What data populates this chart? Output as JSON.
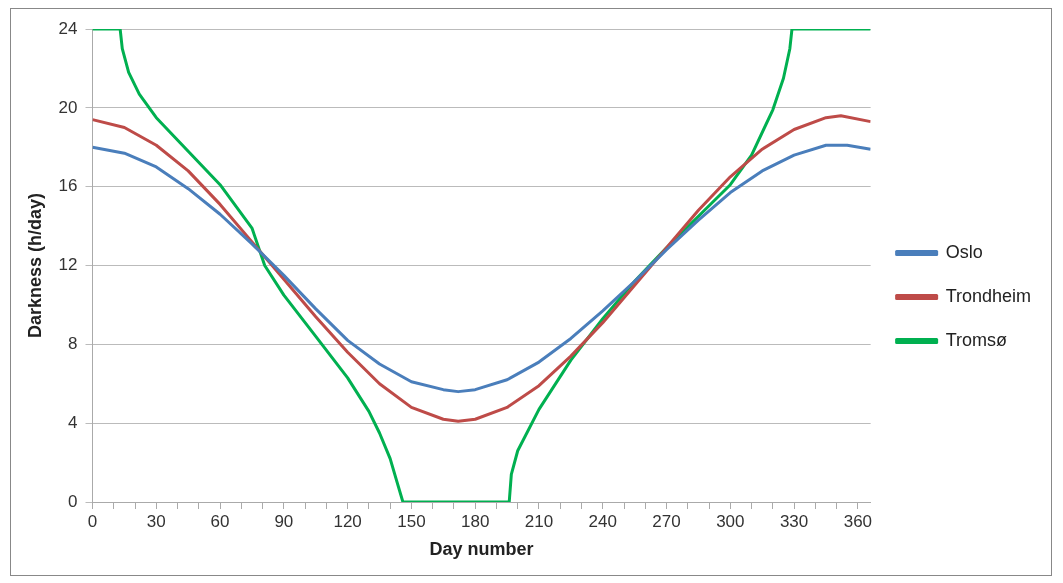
{
  "chart_data": {
    "type": "line",
    "xlabel": "Day number",
    "ylabel": "Darkness (h/day)",
    "xlim": [
      0,
      366
    ],
    "ylim": [
      0,
      24
    ],
    "xticks": [
      0,
      {
        "value": 10,
        "label": null
      },
      {
        "value": 20,
        "label": null
      },
      30,
      {
        "value": 40,
        "label": null
      },
      {
        "value": 50,
        "label": null
      },
      60,
      {
        "value": 70,
        "label": null
      },
      {
        "value": 80,
        "label": null
      },
      90,
      {
        "value": 100,
        "label": null
      },
      {
        "value": 110,
        "label": null
      },
      120,
      {
        "value": 130,
        "label": null
      },
      {
        "value": 140,
        "label": null
      },
      150,
      {
        "value": 160,
        "label": null
      },
      {
        "value": 170,
        "label": null
      },
      180,
      {
        "value": 190,
        "label": null
      },
      {
        "value": 200,
        "label": null
      },
      210,
      {
        "value": 220,
        "label": null
      },
      {
        "value": 230,
        "label": null
      },
      240,
      {
        "value": 250,
        "label": null
      },
      {
        "value": 260,
        "label": null
      },
      270,
      {
        "value": 280,
        "label": null
      },
      {
        "value": 290,
        "label": null
      },
      300,
      {
        "value": 310,
        "label": null
      },
      {
        "value": 320,
        "label": null
      },
      330,
      {
        "value": 340,
        "label": null
      },
      {
        "value": 350,
        "label": null
      },
      360
    ],
    "yticks": [
      0,
      4,
      8,
      12,
      16,
      20,
      24
    ],
    "grid": "y",
    "legend": "right",
    "marker": "none",
    "line_style": "solid",
    "series": [
      {
        "name": "Oslo",
        "color": "#4a7ebb",
        "x": [
          0,
          15,
          30,
          45,
          60,
          75,
          90,
          105,
          120,
          135,
          150,
          165,
          172,
          180,
          195,
          210,
          225,
          240,
          255,
          270,
          285,
          300,
          315,
          330,
          345,
          355,
          366
        ],
        "values": [
          18.0,
          17.7,
          17.0,
          15.9,
          14.6,
          13.1,
          11.5,
          9.8,
          8.2,
          7.0,
          6.1,
          5.7,
          5.6,
          5.7,
          6.2,
          7.1,
          8.3,
          9.7,
          11.2,
          12.8,
          14.3,
          15.7,
          16.8,
          17.6,
          18.1,
          18.1,
          17.9
        ]
      },
      {
        "name": "Trondheim",
        "color": "#be4b48",
        "x": [
          0,
          15,
          30,
          45,
          60,
          75,
          90,
          105,
          120,
          135,
          150,
          165,
          172,
          180,
          195,
          210,
          225,
          240,
          255,
          270,
          285,
          300,
          315,
          330,
          345,
          352,
          366
        ],
        "values": [
          19.4,
          19.0,
          18.1,
          16.8,
          15.1,
          13.2,
          11.3,
          9.4,
          7.6,
          6.0,
          4.8,
          4.2,
          4.1,
          4.2,
          4.8,
          5.9,
          7.4,
          9.1,
          11.0,
          12.9,
          14.8,
          16.5,
          17.9,
          18.9,
          19.5,
          19.6,
          19.3
        ]
      },
      {
        "name": "Tromsø",
        "color": "#00b050",
        "x": [
          0,
          13,
          14,
          17,
          22,
          30,
          45,
          60,
          75,
          81,
          90,
          105,
          120,
          130,
          135,
          140,
          143,
          146,
          196,
          197,
          200,
          210,
          225,
          240,
          255,
          262,
          270,
          285,
          300,
          310,
          320,
          325,
          328,
          329,
          366
        ],
        "values": [
          24,
          24,
          23,
          21.8,
          20.7,
          19.5,
          17.8,
          16.1,
          13.9,
          12,
          10.5,
          8.4,
          6.3,
          4.6,
          3.5,
          2.2,
          1.1,
          0,
          0,
          1.4,
          2.6,
          4.7,
          7.2,
          9.3,
          11.2,
          12,
          12.9,
          14.5,
          16.1,
          17.6,
          19.9,
          21.5,
          23,
          24,
          24
        ]
      }
    ]
  }
}
